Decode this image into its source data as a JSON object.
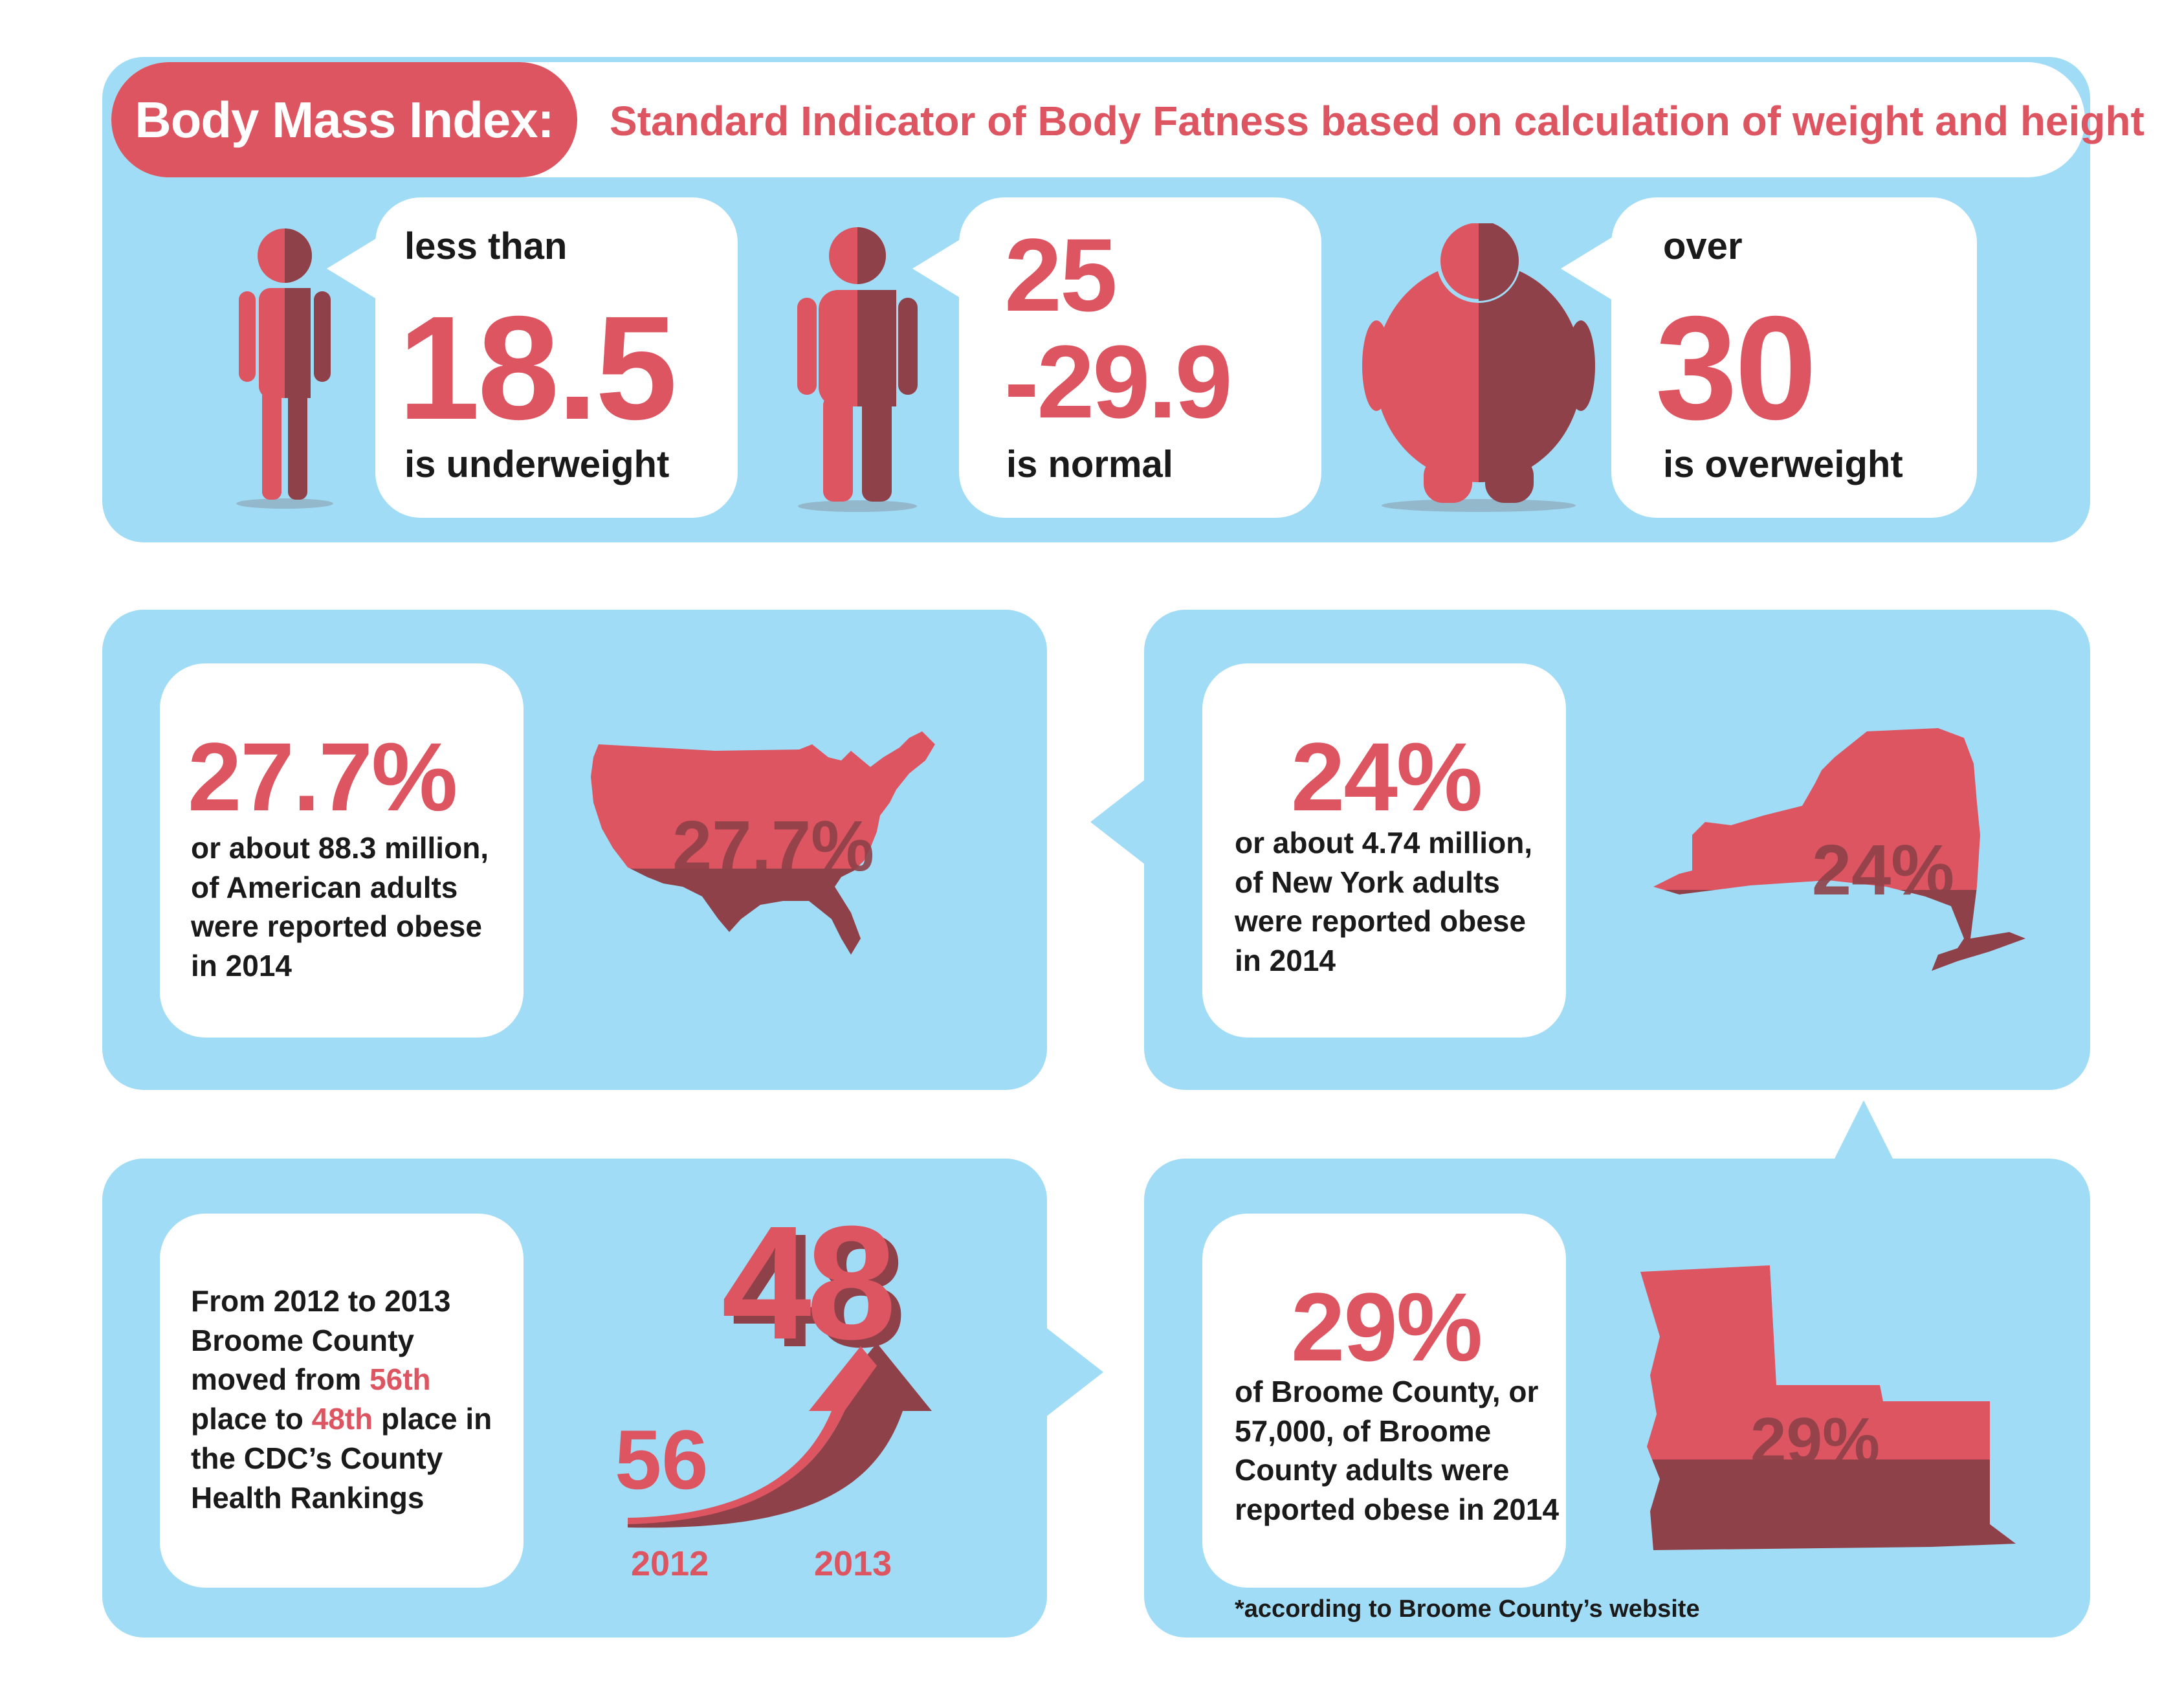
{
  "header": {
    "label": "Body Mass Index:",
    "subtitle": "Standard Indicator of Body Fatness based on calculation of weight and height"
  },
  "bmi": [
    {
      "prefix": "less than",
      "value": "18.5",
      "suffix": "is underweight"
    },
    {
      "prefix": "25",
      "value": "-29.9",
      "suffix": "is normal"
    },
    {
      "prefix": "over",
      "value": "30",
      "suffix": "is overweight"
    }
  ],
  "usa": {
    "percent": "27.7%",
    "lines": [
      "or about 88.3 million,",
      "of American adults",
      "were reported obese",
      "in 2014"
    ],
    "map_label": "27.7%"
  },
  "ny": {
    "percent": "24%",
    "lines": [
      "or about 4.74  million,",
      "of New York adults",
      "were reported obese",
      "in 2014"
    ],
    "map_label": "24%"
  },
  "ranking": {
    "line1": "From 2012 to 2013",
    "line2": "Broome County",
    "line3_pre": "moved from ",
    "line3_hl": "56th",
    "line4_pre": "place to ",
    "line4_hl": "48th",
    "line4_post": " place in",
    "line5": "the CDC’s County",
    "line6": "Health Rankings",
    "from_rank": "56",
    "to_rank": "48",
    "year_from": "2012",
    "year_to": "2013"
  },
  "broome": {
    "percent": "29%",
    "lines": [
      "of Broome County, or",
      "57,000, of Broome",
      "County adults were",
      "reported obese in 2014"
    ],
    "map_label": "29%",
    "footnote": "*according to Broome County’s website"
  },
  "colors": {
    "panel": "#a0dcf6",
    "accent": "#dc5561",
    "accent_dark": "#8f4149",
    "card": "#ffffff"
  }
}
